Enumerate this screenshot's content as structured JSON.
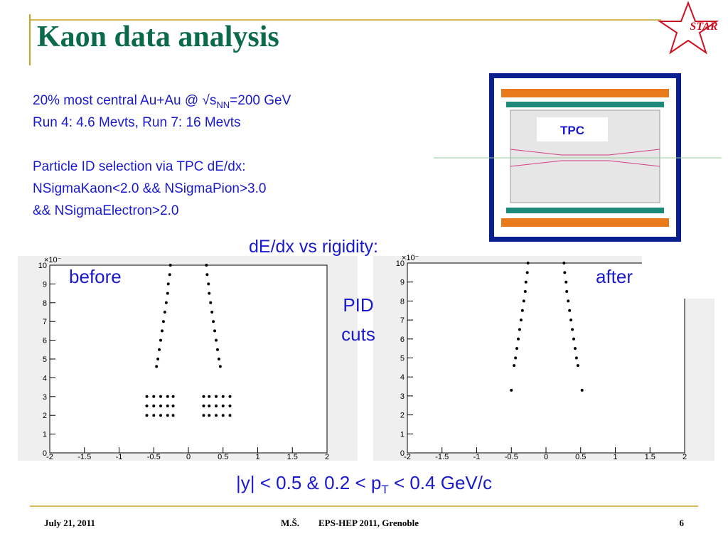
{
  "header": {
    "title": "Kaon data analysis",
    "logo": "STAR"
  },
  "info": {
    "line1": {
      "text": "20% most central Au+Au @ √s",
      "sub": "NN",
      "rest": "=200 GeV"
    },
    "line2": "Run 4: 4.6 Mevts, Run 7: 16 Mevts",
    "line3": "Particle ID selection via TPC dE/dx:",
    "line4": "NSigmaKaon<2.0 && NSigmaPion>3.0",
    "line5": "&& NSigmaElectron>2.0"
  },
  "tpc_label": "TPC",
  "plots_caption": "dE/dx vs rigidity:",
  "arrow_label": {
    "line1": "PID",
    "line2": "cuts"
  },
  "cut": {
    "a": "|y| < 0.5  &  0.2 < p",
    "sub": "T",
    "b": " < 0.4 GeV/c"
  },
  "footer": {
    "date": "July 21, 2011",
    "author": "M.Š.",
    "conference": "EPS-HEP 2011, Grenoble",
    "page": "6"
  },
  "chart_data": [
    {
      "type": "scatter",
      "label": "before",
      "y_multiplier": "×10⁻",
      "color": "#000000",
      "xlim": [
        -2,
        2
      ],
      "ylim": [
        0,
        10
      ],
      "xticks": [
        -2,
        -1.5,
        -1,
        -0.5,
        0,
        0.5,
        1,
        1.5,
        2
      ],
      "yticks": [
        0,
        1,
        2,
        3,
        4,
        5,
        6,
        7,
        8,
        9,
        10
      ],
      "x": [
        -0.46,
        -0.44,
        -0.42,
        -0.4,
        -0.38,
        -0.36,
        -0.34,
        -0.32,
        -0.3,
        -0.29,
        -0.27,
        -0.26,
        0.46,
        0.44,
        0.42,
        0.4,
        0.38,
        0.36,
        0.34,
        0.32,
        0.3,
        0.29,
        0.27,
        0.26,
        -0.6,
        -0.5,
        -0.4,
        -0.3,
        -0.22,
        -0.6,
        -0.5,
        -0.4,
        -0.3,
        -0.22,
        -0.6,
        -0.5,
        -0.4,
        -0.3,
        -0.22,
        0.22,
        0.3,
        0.4,
        0.5,
        0.6,
        0.22,
        0.3,
        0.4,
        0.5,
        0.6,
        0.22,
        0.3,
        0.4,
        0.5,
        0.6
      ],
      "y": [
        4.6,
        5,
        5.5,
        6,
        6.5,
        7,
        7.5,
        8,
        8.5,
        9,
        9.5,
        10,
        4.6,
        5,
        5.5,
        6,
        6.5,
        7,
        7.5,
        8,
        8.5,
        9,
        9.5,
        10,
        2,
        2,
        2,
        2,
        2,
        2.5,
        2.5,
        2.5,
        2.5,
        2.5,
        3,
        3,
        3,
        3,
        3,
        2,
        2,
        2,
        2,
        2,
        2.5,
        2.5,
        2.5,
        2.5,
        2.5,
        3,
        3,
        3,
        3,
        3
      ]
    },
    {
      "type": "scatter",
      "label": "after",
      "y_multiplier": "×10⁻",
      "color": "#000000",
      "xlim": [
        -2,
        2
      ],
      "ylim": [
        0,
        10
      ],
      "xticks": [
        -2,
        -1.5,
        -1,
        -0.5,
        0,
        0.5,
        1,
        1.5,
        2
      ],
      "yticks": [
        0,
        1,
        2,
        3,
        4,
        5,
        6,
        7,
        8,
        9,
        10
      ],
      "x": [
        -0.46,
        -0.44,
        -0.42,
        -0.4,
        -0.38,
        -0.36,
        -0.34,
        -0.32,
        -0.3,
        -0.29,
        -0.27,
        -0.26,
        0.46,
        0.44,
        0.42,
        0.4,
        0.38,
        0.36,
        0.34,
        0.32,
        0.3,
        0.29,
        0.27,
        0.26,
        -0.5,
        0.52
      ],
      "y": [
        4.6,
        5,
        5.5,
        6,
        6.5,
        7,
        7.5,
        8,
        8.5,
        9,
        9.5,
        10,
        4.6,
        5,
        5.5,
        6,
        6.5,
        7,
        7.5,
        8,
        8.5,
        9,
        9.5,
        10,
        3.3,
        3.3
      ]
    }
  ]
}
